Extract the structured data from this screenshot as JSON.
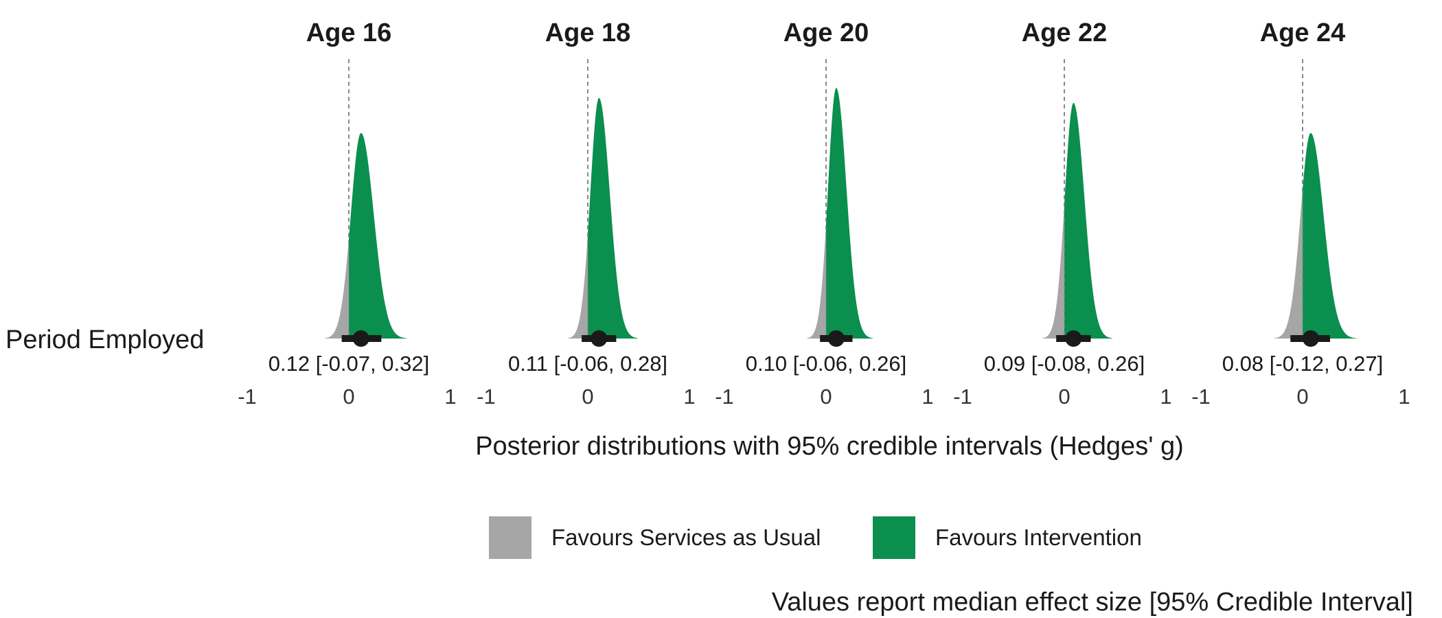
{
  "chart_data": {
    "type": "ridgeline",
    "row_label": "Period Employed",
    "x_axis": {
      "label": "Posterior distributions with 95% credible intervals (Hedges' g)",
      "ticks": [
        -1,
        0,
        1
      ],
      "tick_labels": [
        "-1",
        "0",
        "1"
      ],
      "range": [
        -1,
        1
      ],
      "reference_line": 0
    },
    "panels": [
      {
        "title": "Age 16",
        "median": 0.12,
        "lower": -0.07,
        "upper": 0.32,
        "label": "0.12 [-0.07, 0.32]",
        "spread": 0.1,
        "peak": 0.82
      },
      {
        "title": "Age 18",
        "median": 0.11,
        "lower": -0.06,
        "upper": 0.28,
        "label": "0.11 [-0.06, 0.28]",
        "spread": 0.085,
        "peak": 0.96
      },
      {
        "title": "Age 20",
        "median": 0.1,
        "lower": -0.06,
        "upper": 0.26,
        "label": "0.10 [-0.06, 0.26]",
        "spread": 0.08,
        "peak": 1.0
      },
      {
        "title": "Age 22",
        "median": 0.09,
        "lower": -0.08,
        "upper": 0.26,
        "label": "0.09 [-0.08, 0.26]",
        "spread": 0.085,
        "peak": 0.94
      },
      {
        "title": "Age 24",
        "median": 0.08,
        "lower": -0.12,
        "upper": 0.27,
        "label": "0.08 [-0.12, 0.27]",
        "spread": 0.1,
        "peak": 0.82
      }
    ],
    "legend": [
      {
        "label": "Favours Services as Usual",
        "color": "#a6a6a6"
      },
      {
        "label": "Favours Intervention",
        "color": "#0a8f4e"
      }
    ],
    "caption": "Values report median effect size [95% Credible Interval]"
  },
  "colors": {
    "negative_fill": "#a6a6a6",
    "positive_fill": "#0a8f4e",
    "interval": "#1a1a1a",
    "reference_line": "#8a8a8a"
  }
}
